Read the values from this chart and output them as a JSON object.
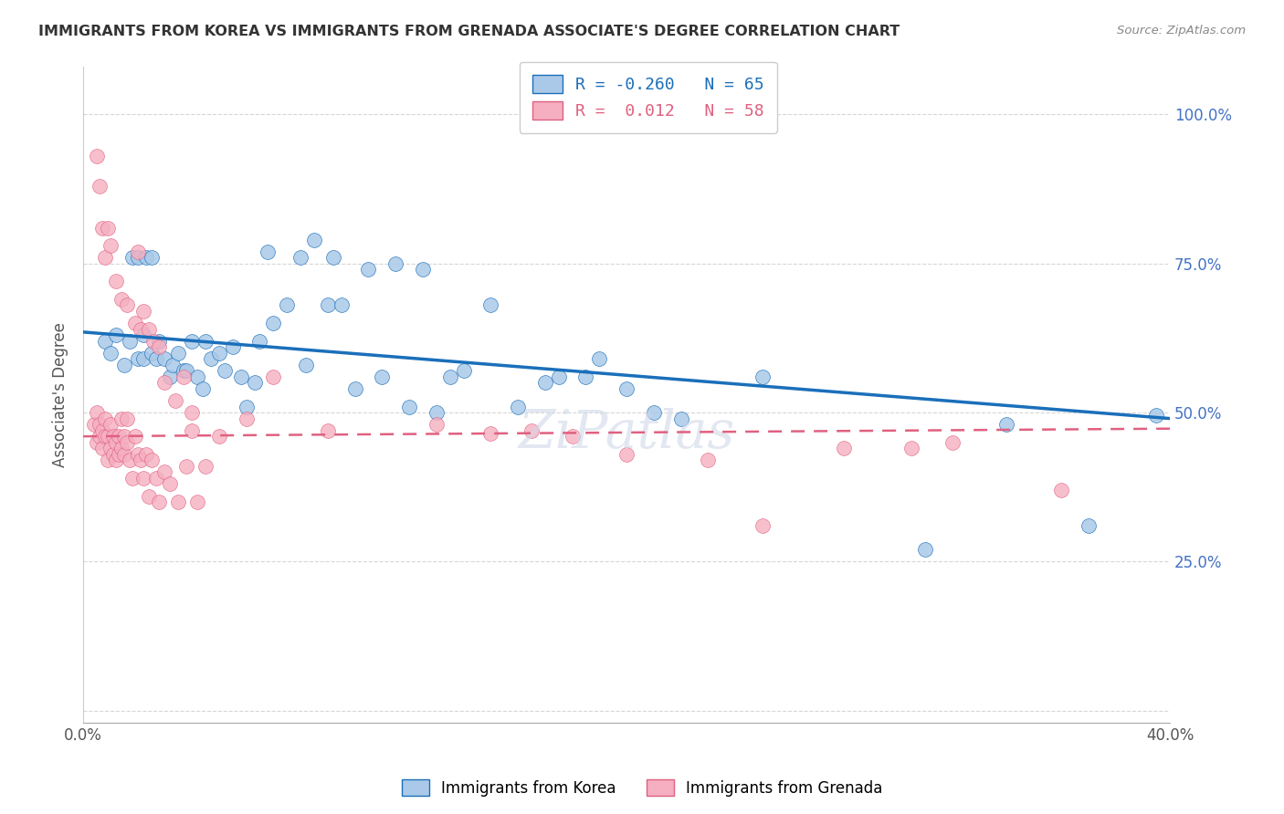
{
  "title": "IMMIGRANTS FROM KOREA VS IMMIGRANTS FROM GRENADA ASSOCIATE'S DEGREE CORRELATION CHART",
  "source": "Source: ZipAtlas.com",
  "ylabel": "Associate's Degree",
  "y_ticks": [
    0.0,
    0.25,
    0.5,
    0.75,
    1.0
  ],
  "y_tick_labels": [
    "",
    "25.0%",
    "50.0%",
    "75.0%",
    "100.0%"
  ],
  "x_range": [
    0.0,
    0.4
  ],
  "y_range": [
    -0.02,
    1.08
  ],
  "legend_korea_R": "-0.260",
  "legend_korea_N": "65",
  "legend_grenada_R": "0.012",
  "legend_grenada_N": "58",
  "korea_color": "#aac9e8",
  "grenada_color": "#f5afc0",
  "korea_line_color": "#1a6fba",
  "grenada_line_color": "#e06080",
  "watermark": "ZiPatlas",
  "korea_line_x0": 0.0,
  "korea_line_y0": 0.635,
  "korea_line_x1": 0.4,
  "korea_line_y1": 0.49,
  "grenada_line_x0": 0.0,
  "grenada_line_y0": 0.46,
  "grenada_line_x1": 0.4,
  "grenada_line_y1": 0.473,
  "korea_x": [
    0.008,
    0.01,
    0.012,
    0.015,
    0.017,
    0.018,
    0.02,
    0.02,
    0.022,
    0.022,
    0.023,
    0.025,
    0.025,
    0.027,
    0.028,
    0.03,
    0.032,
    0.033,
    0.035,
    0.037,
    0.038,
    0.04,
    0.042,
    0.044,
    0.045,
    0.047,
    0.05,
    0.052,
    0.055,
    0.058,
    0.06,
    0.063,
    0.065,
    0.068,
    0.07,
    0.075,
    0.08,
    0.082,
    0.085,
    0.09,
    0.092,
    0.095,
    0.1,
    0.105,
    0.11,
    0.115,
    0.12,
    0.125,
    0.13,
    0.135,
    0.14,
    0.15,
    0.16,
    0.17,
    0.175,
    0.185,
    0.19,
    0.2,
    0.21,
    0.22,
    0.25,
    0.31,
    0.34,
    0.37,
    0.395
  ],
  "korea_y": [
    0.62,
    0.6,
    0.63,
    0.58,
    0.62,
    0.76,
    0.76,
    0.59,
    0.63,
    0.59,
    0.76,
    0.76,
    0.6,
    0.59,
    0.62,
    0.59,
    0.56,
    0.58,
    0.6,
    0.57,
    0.57,
    0.62,
    0.56,
    0.54,
    0.62,
    0.59,
    0.6,
    0.57,
    0.61,
    0.56,
    0.51,
    0.55,
    0.62,
    0.77,
    0.65,
    0.68,
    0.76,
    0.58,
    0.79,
    0.68,
    0.76,
    0.68,
    0.54,
    0.74,
    0.56,
    0.75,
    0.51,
    0.74,
    0.5,
    0.56,
    0.57,
    0.68,
    0.51,
    0.55,
    0.56,
    0.56,
    0.59,
    0.54,
    0.5,
    0.49,
    0.56,
    0.27,
    0.48,
    0.31,
    0.495
  ],
  "grenada_x": [
    0.004,
    0.005,
    0.005,
    0.006,
    0.006,
    0.007,
    0.007,
    0.008,
    0.008,
    0.009,
    0.009,
    0.01,
    0.01,
    0.011,
    0.011,
    0.012,
    0.012,
    0.013,
    0.013,
    0.014,
    0.014,
    0.015,
    0.015,
    0.016,
    0.016,
    0.017,
    0.018,
    0.019,
    0.02,
    0.021,
    0.022,
    0.023,
    0.024,
    0.025,
    0.027,
    0.028,
    0.03,
    0.032,
    0.035,
    0.038,
    0.04,
    0.042,
    0.045,
    0.05,
    0.06,
    0.07,
    0.09,
    0.13,
    0.15,
    0.165,
    0.18,
    0.2,
    0.23,
    0.25,
    0.28,
    0.305,
    0.32,
    0.36
  ],
  "grenada_y": [
    0.48,
    0.45,
    0.5,
    0.48,
    0.46,
    0.47,
    0.44,
    0.46,
    0.49,
    0.46,
    0.42,
    0.44,
    0.48,
    0.43,
    0.46,
    0.45,
    0.42,
    0.43,
    0.46,
    0.44,
    0.49,
    0.43,
    0.46,
    0.45,
    0.49,
    0.42,
    0.39,
    0.46,
    0.43,
    0.42,
    0.39,
    0.43,
    0.36,
    0.42,
    0.39,
    0.35,
    0.4,
    0.38,
    0.35,
    0.41,
    0.47,
    0.35,
    0.41,
    0.46,
    0.49,
    0.56,
    0.47,
    0.48,
    0.465,
    0.47,
    0.46,
    0.43,
    0.42,
    0.31,
    0.44,
    0.44,
    0.45,
    0.37
  ],
  "grenada_high_x": [
    0.005,
    0.006,
    0.007,
    0.008,
    0.009,
    0.01,
    0.012,
    0.014,
    0.016,
    0.019,
    0.02,
    0.021,
    0.022,
    0.024,
    0.026,
    0.028,
    0.03,
    0.034,
    0.037,
    0.04
  ],
  "grenada_high_y": [
    0.93,
    0.88,
    0.81,
    0.76,
    0.81,
    0.78,
    0.72,
    0.69,
    0.68,
    0.65,
    0.77,
    0.64,
    0.67,
    0.64,
    0.62,
    0.61,
    0.55,
    0.52,
    0.56,
    0.5
  ]
}
